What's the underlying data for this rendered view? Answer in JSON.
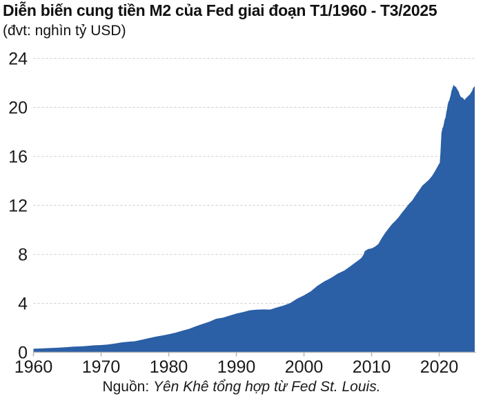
{
  "header": {
    "title": "Diễn biến cung tiền M2 của Fed giai đoạn T1/1960 - T3/2025",
    "subtitle": "(đvt: nghìn tỷ USD)"
  },
  "source": {
    "label": "Nguồn:",
    "text": "Yên Khê tổng hợp từ Fed St. Louis."
  },
  "chart_data": {
    "type": "area",
    "title": "Diễn biến cung tiền M2 của Fed giai đoạn T1/1960 - T3/2025",
    "unit": "nghìn tỷ USD",
    "series_name": "M2",
    "xlim": [
      1960,
      2025.25
    ],
    "ylim": [
      0,
      24
    ],
    "yticks": [
      0,
      4,
      8,
      12,
      16,
      20,
      24
    ],
    "xticks": [
      1960,
      1970,
      1980,
      1990,
      2000,
      2010,
      2020
    ],
    "grid": "horizontal-dashed",
    "legend": "none",
    "colors": {
      "area": "#2b5fa6",
      "grid": "#cccccc",
      "axis": "#b3b3b3",
      "text": "#1a1a1a"
    },
    "points": [
      [
        1960,
        0.29
      ],
      [
        1961,
        0.31
      ],
      [
        1962,
        0.34
      ],
      [
        1963,
        0.36
      ],
      [
        1964,
        0.39
      ],
      [
        1965,
        0.42
      ],
      [
        1966,
        0.46
      ],
      [
        1967,
        0.48
      ],
      [
        1968,
        0.52
      ],
      [
        1969,
        0.57
      ],
      [
        1970,
        0.59
      ],
      [
        1971,
        0.63
      ],
      [
        1972,
        0.71
      ],
      [
        1973,
        0.8
      ],
      [
        1974,
        0.86
      ],
      [
        1975,
        0.9
      ],
      [
        1976,
        1.02
      ],
      [
        1977,
        1.15
      ],
      [
        1978,
        1.27
      ],
      [
        1979,
        1.37
      ],
      [
        1980,
        1.47
      ],
      [
        1981,
        1.6
      ],
      [
        1982,
        1.76
      ],
      [
        1983,
        1.91
      ],
      [
        1984,
        2.12
      ],
      [
        1985,
        2.31
      ],
      [
        1986,
        2.49
      ],
      [
        1987,
        2.73
      ],
      [
        1988,
        2.82
      ],
      [
        1989,
        2.99
      ],
      [
        1990,
        3.16
      ],
      [
        1991,
        3.28
      ],
      [
        1992,
        3.43
      ],
      [
        1993,
        3.48
      ],
      [
        1994,
        3.5
      ],
      [
        1995,
        3.49
      ],
      [
        1996,
        3.66
      ],
      [
        1997,
        3.82
      ],
      [
        1998,
        4.03
      ],
      [
        1999,
        4.38
      ],
      [
        2000,
        4.65
      ],
      [
        2001,
        4.97
      ],
      [
        2002,
        5.43
      ],
      [
        2003,
        5.78
      ],
      [
        2004,
        6.07
      ],
      [
        2005,
        6.42
      ],
      [
        2006,
        6.68
      ],
      [
        2007,
        7.08
      ],
      [
        2008,
        7.49
      ],
      [
        2008.5,
        7.7
      ],
      [
        2008.83,
        8.0
      ],
      [
        2009,
        8.26
      ],
      [
        2009.5,
        8.43
      ],
      [
        2010,
        8.48
      ],
      [
        2010.5,
        8.62
      ],
      [
        2011,
        8.83
      ],
      [
        2011.5,
        9.32
      ],
      [
        2012,
        9.74
      ],
      [
        2012.5,
        10.1
      ],
      [
        2013,
        10.45
      ],
      [
        2013.5,
        10.72
      ],
      [
        2014,
        11.03
      ],
      [
        2014.5,
        11.4
      ],
      [
        2015,
        11.74
      ],
      [
        2015.5,
        12.1
      ],
      [
        2016,
        12.39
      ],
      [
        2016.5,
        12.8
      ],
      [
        2017,
        13.2
      ],
      [
        2017.5,
        13.6
      ],
      [
        2018,
        13.85
      ],
      [
        2018.5,
        14.1
      ],
      [
        2019,
        14.44
      ],
      [
        2019.5,
        14.9
      ],
      [
        2020,
        15.4
      ],
      [
        2020.08,
        15.45
      ],
      [
        2020.17,
        16.12
      ],
      [
        2020.25,
        17.05
      ],
      [
        2020.33,
        17.9
      ],
      [
        2020.42,
        18.16
      ],
      [
        2020.5,
        18.33
      ],
      [
        2020.58,
        18.39
      ],
      [
        2020.67,
        18.61
      ],
      [
        2020.75,
        18.84
      ],
      [
        2020.83,
        19.06
      ],
      [
        2020.92,
        19.13
      ],
      [
        2021,
        19.39
      ],
      [
        2021.08,
        19.67
      ],
      [
        2021.17,
        19.9
      ],
      [
        2021.25,
        20.21
      ],
      [
        2021.33,
        20.38
      ],
      [
        2021.42,
        20.53
      ],
      [
        2021.5,
        20.55
      ],
      [
        2021.58,
        20.77
      ],
      [
        2021.67,
        20.92
      ],
      [
        2021.75,
        21.14
      ],
      [
        2021.83,
        21.39
      ],
      [
        2021.92,
        21.49
      ],
      [
        2022,
        21.66
      ],
      [
        2022.08,
        21.72
      ],
      [
        2022.17,
        21.86
      ],
      [
        2022.25,
        21.74
      ],
      [
        2022.33,
        21.71
      ],
      [
        2022.42,
        21.66
      ],
      [
        2022.5,
        21.66
      ],
      [
        2022.58,
        21.55
      ],
      [
        2022.67,
        21.48
      ],
      [
        2022.75,
        21.4
      ],
      [
        2022.83,
        21.33
      ],
      [
        2022.92,
        21.21
      ],
      [
        2023,
        21.09
      ],
      [
        2023.17,
        20.87
      ],
      [
        2023.33,
        20.8
      ],
      [
        2023.5,
        20.77
      ],
      [
        2023.67,
        20.65
      ],
      [
        2023.75,
        20.6
      ],
      [
        2023.83,
        20.65
      ],
      [
        2023.92,
        20.73
      ],
      [
        2024,
        20.78
      ],
      [
        2024.17,
        20.85
      ],
      [
        2024.33,
        20.96
      ],
      [
        2024.5,
        21.02
      ],
      [
        2024.67,
        21.17
      ],
      [
        2024.83,
        21.31
      ],
      [
        2024.92,
        21.42
      ],
      [
        2025,
        21.56
      ],
      [
        2025.08,
        21.61
      ],
      [
        2025.17,
        21.67
      ],
      [
        2025.25,
        21.76
      ]
    ]
  }
}
